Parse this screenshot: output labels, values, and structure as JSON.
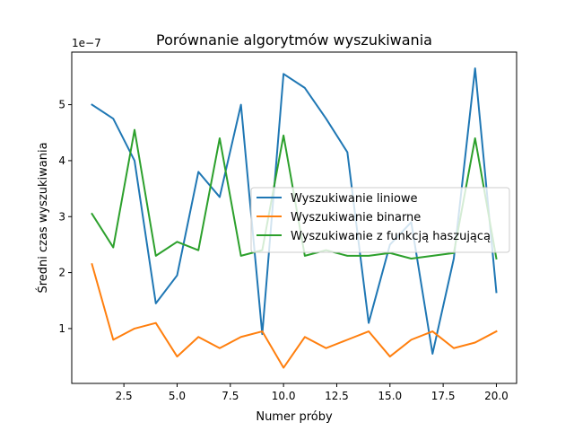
{
  "chart_data": {
    "type": "line",
    "title": "Porównanie algorytmów wyszukiwania",
    "xlabel": "Numer próby",
    "ylabel": "Średni czas wyszukiwania",
    "y_offset_label": "1e−7",
    "y_scale_factor": 1e-07,
    "xlim": [
      0.05,
      20.95
    ],
    "ylim": [
      0.02,
      5.94
    ],
    "x_ticks": [
      2.5,
      5.0,
      7.5,
      10.0,
      12.5,
      15.0,
      17.5,
      20.0
    ],
    "x_tick_labels": [
      "2.5",
      "5.0",
      "7.5",
      "10.0",
      "12.5",
      "15.0",
      "17.5",
      "20.0"
    ],
    "y_ticks": [
      1,
      2,
      3,
      4,
      5
    ],
    "y_tick_labels": [
      "1",
      "2",
      "3",
      "4",
      "5"
    ],
    "grid": false,
    "legend_position": "center-right",
    "x": [
      1,
      2,
      3,
      4,
      5,
      6,
      7,
      8,
      9,
      10,
      11,
      12,
      13,
      14,
      15,
      16,
      17,
      18,
      19,
      20
    ],
    "series": [
      {
        "name": "Wyszukiwanie liniowe",
        "color": "#1f77b4",
        "values": [
          5.0,
          4.75,
          4.0,
          1.45,
          1.95,
          3.8,
          3.35,
          5.0,
          0.9,
          5.55,
          5.3,
          4.75,
          4.15,
          1.1,
          2.5,
          2.9,
          0.55,
          2.25,
          5.65,
          1.65
        ]
      },
      {
        "name": "Wyszukiwanie binarne",
        "color": "#ff7f0e",
        "values": [
          2.15,
          0.8,
          1.0,
          1.1,
          0.5,
          0.85,
          0.65,
          0.85,
          0.95,
          0.3,
          0.85,
          0.65,
          0.8,
          0.95,
          0.5,
          0.8,
          0.95,
          0.65,
          0.75,
          0.95
        ]
      },
      {
        "name": "Wyszukiwanie z funkcją haszującą",
        "color": "#2ca02c",
        "values": [
          3.05,
          2.45,
          4.55,
          2.3,
          2.55,
          2.4,
          4.4,
          2.3,
          2.4,
          4.45,
          2.3,
          2.4,
          2.3,
          2.3,
          2.35,
          2.25,
          2.3,
          2.35,
          4.4,
          2.25
        ]
      }
    ]
  }
}
